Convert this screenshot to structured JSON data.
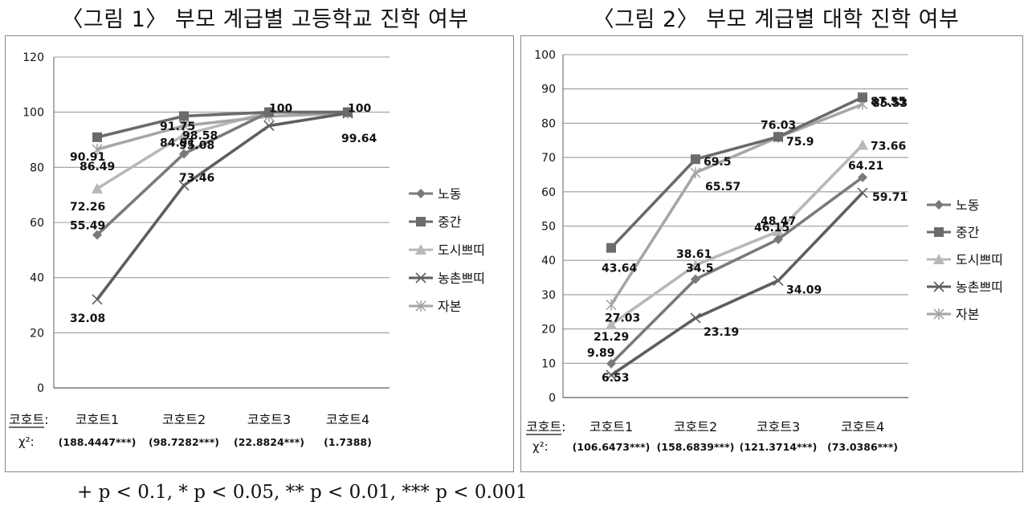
{
  "footnote": "+ p < 0.1, * p < 0.05, ** p < 0.01, *** p < 0.001",
  "chart_data": [
    {
      "type": "line",
      "title": "〈그림 1〉 부모 계급별 고등학교 진학 여부",
      "categories": [
        "코호트1",
        "코호트2",
        "코호트3",
        "코호트4"
      ],
      "row_label": "코호트:",
      "chi_label": "χ²:",
      "chi_values": [
        "(188.4447***)",
        "(98.7282***)",
        "(22.8824***)",
        "(1.7388)"
      ],
      "ylim": [
        0,
        120
      ],
      "yticks": [
        0,
        20,
        40,
        60,
        80,
        100,
        120
      ],
      "grid": true,
      "legend_position": "right",
      "series": [
        {
          "name": "노동",
          "marker": "diamond",
          "color": "#7a7a7a",
          "values": [
            55.49,
            84.91,
            100,
            100
          ]
        },
        {
          "name": "중간",
          "marker": "square",
          "color": "#6b6b6b",
          "values": [
            90.91,
            98.58,
            100,
            100
          ]
        },
        {
          "name": "도시쁘띠",
          "marker": "triangle",
          "color": "#b8b8b8",
          "values": [
            72.26,
            91.75,
            100,
            100
          ]
        },
        {
          "name": "농촌쁘띠",
          "marker": "x",
          "color": "#5e5e5e",
          "values": [
            32.08,
            73.46,
            95.08,
            99.64
          ]
        },
        {
          "name": "자본",
          "marker": "star",
          "color": "#a6a6a6",
          "values": [
            86.49,
            95.08,
            98.5,
            99.64
          ]
        }
      ],
      "labels": [
        {
          "text": "90.91",
          "series": 1,
          "point": 0
        },
        {
          "text": "86.49",
          "series": 4,
          "point": 0
        },
        {
          "text": "72.26",
          "series": 2,
          "point": 0
        },
        {
          "text": "55.49",
          "series": 0,
          "point": 0
        },
        {
          "text": "32.08",
          "series": 3,
          "point": 0
        },
        {
          "text": "98.58",
          "series": 1,
          "point": 1
        },
        {
          "text": "95.08",
          "series": 4,
          "point": 1
        },
        {
          "text": "91.75",
          "series": 2,
          "point": 1
        },
        {
          "text": "84.91",
          "series": 0,
          "point": 1
        },
        {
          "text": "73.46",
          "series": 3,
          "point": 1
        },
        {
          "text": "100",
          "series": 1,
          "point": 2
        },
        {
          "text": "100",
          "series": 1,
          "point": 3
        },
        {
          "text": "99.64",
          "series": 3,
          "point": 3
        }
      ]
    },
    {
      "type": "line",
      "title": "〈그림 2〉 부모 계급별 대학 진학 여부",
      "categories": [
        "코호트1",
        "코호트2",
        "코호트3",
        "코호트4"
      ],
      "row_label": "코호트:",
      "chi_label": "χ²:",
      "chi_values": [
        "(106.6473***)",
        "(158.6839***)",
        "(121.3714***)",
        "(73.0386***)"
      ],
      "ylim": [
        0,
        100
      ],
      "yticks": [
        0,
        10,
        20,
        30,
        40,
        50,
        60,
        70,
        80,
        90,
        100
      ],
      "grid": true,
      "legend_position": "right",
      "series": [
        {
          "name": "노동",
          "marker": "diamond",
          "color": "#7a7a7a",
          "values": [
            9.89,
            34.5,
            46.15,
            64.21
          ]
        },
        {
          "name": "중간",
          "marker": "square",
          "color": "#6b6b6b",
          "values": [
            43.64,
            69.5,
            76.03,
            87.55
          ]
        },
        {
          "name": "도시쁘띠",
          "marker": "triangle",
          "color": "#b8b8b8",
          "values": [
            21.29,
            38.61,
            48.47,
            73.66
          ]
        },
        {
          "name": "농촌쁘띠",
          "marker": "x",
          "color": "#5e5e5e",
          "values": [
            6.53,
            23.19,
            34.09,
            59.71
          ]
        },
        {
          "name": "자본",
          "marker": "star",
          "color": "#a6a6a6",
          "values": [
            27.03,
            65.57,
            75.9,
            85.53
          ]
        }
      ],
      "labels": [
        {
          "text": "43.64",
          "series": 1,
          "point": 0
        },
        {
          "text": "27.03",
          "series": 4,
          "point": 0
        },
        {
          "text": "21.29",
          "series": 2,
          "point": 0
        },
        {
          "text": "9.89",
          "series": 0,
          "point": 0
        },
        {
          "text": "6.53",
          "series": 3,
          "point": 0
        },
        {
          "text": "69.5",
          "series": 1,
          "point": 1
        },
        {
          "text": "65.57",
          "series": 4,
          "point": 1
        },
        {
          "text": "38.61",
          "series": 2,
          "point": 1
        },
        {
          "text": "34.5",
          "series": 0,
          "point": 1
        },
        {
          "text": "23.19",
          "series": 3,
          "point": 1
        },
        {
          "text": "76.03",
          "series": 1,
          "point": 2
        },
        {
          "text": "75.9",
          "series": 4,
          "point": 2
        },
        {
          "text": "48.47",
          "series": 2,
          "point": 2
        },
        {
          "text": "46.15",
          "series": 0,
          "point": 2
        },
        {
          "text": "34.09",
          "series": 3,
          "point": 2
        },
        {
          "text": "87.55",
          "series": 1,
          "point": 3
        },
        {
          "text": "85.53",
          "series": 4,
          "point": 3
        },
        {
          "text": "73.66",
          "series": 2,
          "point": 3
        },
        {
          "text": "64.21",
          "series": 0,
          "point": 3
        },
        {
          "text": "59.71",
          "series": 3,
          "point": 3
        }
      ]
    }
  ]
}
